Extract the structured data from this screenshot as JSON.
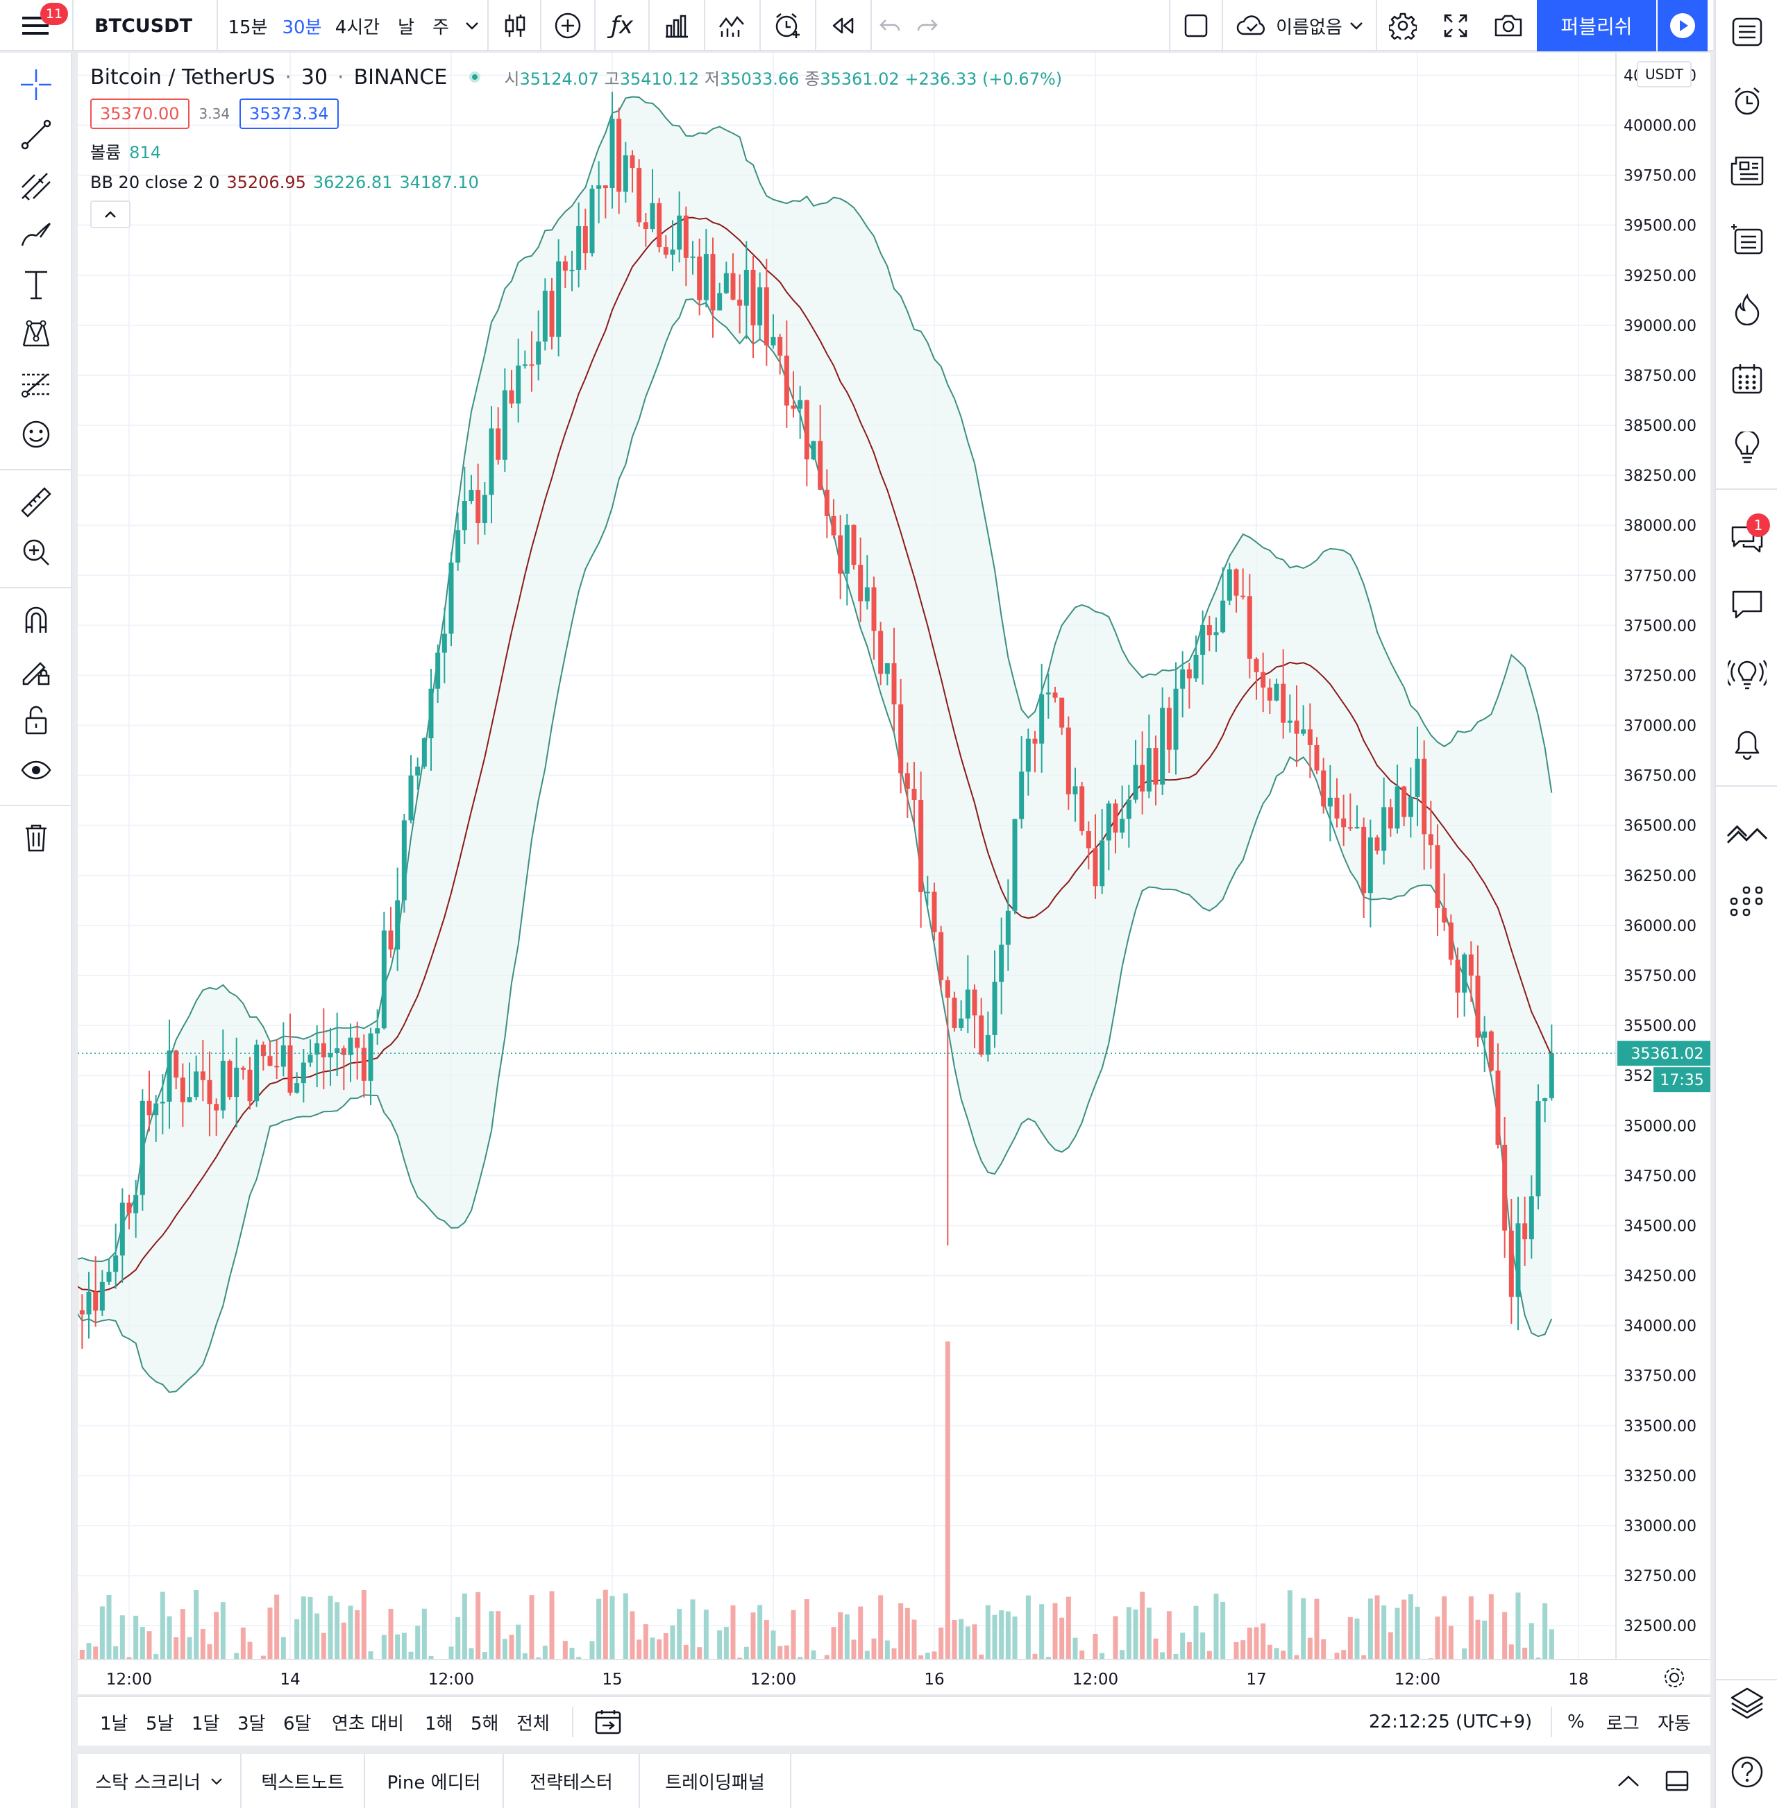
{
  "header": {
    "menu_badge": "11",
    "symbol": "BTCUSDT",
    "intervals": [
      "15분",
      "30분",
      "4시간",
      "날",
      "주"
    ],
    "active_interval": "30분",
    "layout_name": "이름없음",
    "publish_label": "퍼블리쉬"
  },
  "legend": {
    "symbol_name": "Bitcoin / TetherUS",
    "interval": "30",
    "exchange": "BINANCE",
    "open_label": "시",
    "open": "35124.07",
    "high_label": "고",
    "high": "35410.12",
    "low_label": "저",
    "low": "35033.66",
    "close_label": "종",
    "close": "35361.02",
    "change": "+236.33 (+0.67%)",
    "sell_price": "35370.00",
    "spread": "3.34",
    "buy_price": "35373.34",
    "volume_label": "볼륨",
    "volume_value": "814",
    "bb_label": "BB 20 close 2 0",
    "bb_basis": "35206.95",
    "bb_upper": "36226.81",
    "bb_lower": "34187.10"
  },
  "price_axis": {
    "currency": "USDT",
    "ticks": [
      "40250.00",
      "40000.00",
      "39750.00",
      "39500.00",
      "39250.00",
      "39000.00",
      "38750.00",
      "38500.00",
      "38250.00",
      "38000.00",
      "37750.00",
      "37500.00",
      "37250.00",
      "37000.00",
      "36750.00",
      "36500.00",
      "36250.00",
      "36000.00",
      "35750.00",
      "35500.00",
      "35250.00",
      "35000.00",
      "34750.00",
      "34500.00",
      "34250.00",
      "34000.00",
      "33750.00",
      "33500.00",
      "33250.00",
      "33000.00",
      "32750.00",
      "32500.00"
    ],
    "last_price_label": "35361.02",
    "countdown": "17:35"
  },
  "time_axis": {
    "labels": [
      "12:00",
      "14",
      "12:00",
      "15",
      "12:00",
      "16",
      "12:00",
      "17",
      "12:00",
      "18"
    ]
  },
  "range_bar": {
    "ranges": [
      "1날",
      "5날",
      "1달",
      "3달",
      "6달",
      "연초 대비",
      "1해",
      "5해",
      "전체"
    ],
    "clock": "22:12:25 (UTC+9)",
    "percent_label": "%",
    "log_label": "로그",
    "auto_label": "자동"
  },
  "bottom_tabs": [
    "스탁 스크리너",
    "텍스트노트",
    "Pine 에디터",
    "전략테스터",
    "트레이딩패널"
  ],
  "right_sidebar": {
    "chat_badge": "1"
  },
  "colors": {
    "up": "#26a69a",
    "down": "#ef5350",
    "bb_band": "#3b8f82",
    "bb_basis": "#8b1a1a",
    "accent": "#2962ff"
  },
  "chart_data": {
    "type": "candlestick",
    "symbol": "BTCUSDT",
    "interval_minutes": 30,
    "ylim": [
      32400,
      40300
    ],
    "last_price": 35361.02,
    "key_points": [
      {
        "x": "13 10:00",
        "price": 34200
      },
      {
        "x": "13 14:00",
        "price": 35200
      },
      {
        "x": "14 06:00",
        "price": 35400
      },
      {
        "x": "14 12:00",
        "price": 37800
      },
      {
        "x": "15 00:00",
        "price": 39900
      },
      {
        "x": "15 06:00",
        "price": 39300
      },
      {
        "x": "15 12:00",
        "price": 39000
      },
      {
        "x": "15 20:00",
        "price": 37300
      },
      {
        "x": "16 01:00",
        "price": 35700
      },
      {
        "x": "16 04:00",
        "price": 35400
      },
      {
        "x": "16 08:00",
        "price": 37300
      },
      {
        "x": "16 12:00",
        "price": 36300
      },
      {
        "x": "16 22:00",
        "price": 37600
      },
      {
        "x": "17 02:00",
        "price": 37100
      },
      {
        "x": "17 08:00",
        "price": 36300
      },
      {
        "x": "17 12:00",
        "price": 36700
      },
      {
        "x": "17 18:00",
        "price": 35000
      },
      {
        "x": "17 19:00",
        "price": 34200
      },
      {
        "x": "17 22:00",
        "price": 35361
      }
    ]
  }
}
